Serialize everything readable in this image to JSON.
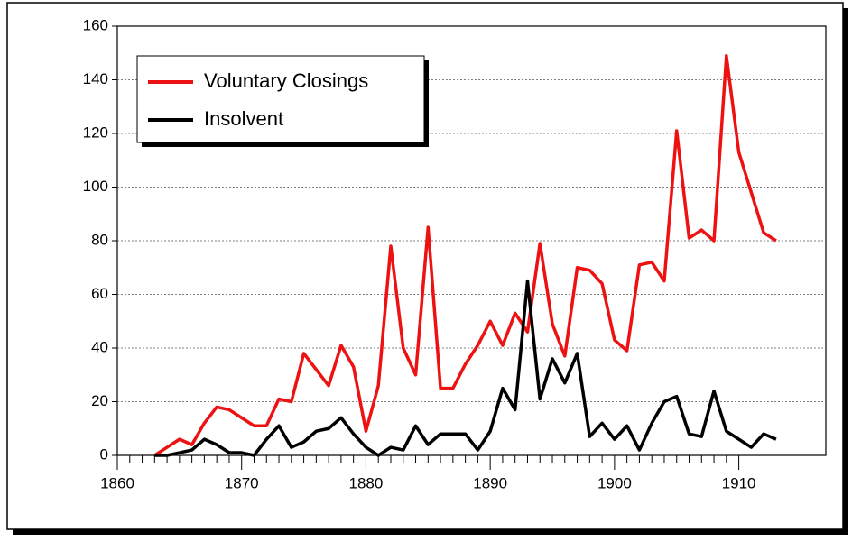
{
  "chart_data": {
    "type": "line",
    "x": [
      1863,
      1864,
      1865,
      1866,
      1867,
      1868,
      1869,
      1870,
      1871,
      1872,
      1873,
      1874,
      1875,
      1876,
      1877,
      1878,
      1879,
      1880,
      1881,
      1882,
      1883,
      1884,
      1885,
      1886,
      1887,
      1888,
      1889,
      1890,
      1891,
      1892,
      1893,
      1894,
      1895,
      1896,
      1897,
      1898,
      1899,
      1900,
      1901,
      1902,
      1903,
      1904,
      1905,
      1906,
      1907,
      1908,
      1909,
      1910,
      1911,
      1912,
      1913
    ],
    "series": [
      {
        "name": "Voluntary Closings",
        "color": "#ee1111",
        "values": [
          0,
          3,
          6,
          4,
          12,
          18,
          17,
          14,
          11,
          11,
          21,
          20,
          38,
          32,
          26,
          41,
          33,
          9,
          26,
          78,
          40,
          30,
          85,
          25,
          25,
          34,
          41,
          50,
          41,
          53,
          46,
          79,
          49,
          37,
          70,
          69,
          64,
          43,
          39,
          71,
          72,
          65,
          121,
          81,
          84,
          80,
          149,
          113,
          98,
          83,
          80
        ]
      },
      {
        "name": "Insolvent",
        "color": "#000000",
        "values": [
          0,
          0,
          1,
          2,
          6,
          4,
          1,
          1,
          0,
          6,
          11,
          3,
          5,
          9,
          10,
          14,
          8,
          3,
          0,
          3,
          2,
          11,
          4,
          8,
          8,
          8,
          2,
          9,
          25,
          17,
          65,
          21,
          36,
          27,
          38,
          7,
          12,
          6,
          11,
          2,
          12,
          20,
          22,
          8,
          7,
          24,
          9,
          6,
          3,
          8,
          6
        ]
      }
    ],
    "xlim": [
      1860,
      1917
    ],
    "xticks": [
      1860,
      1870,
      1880,
      1890,
      1900,
      1910
    ],
    "ylim": [
      0,
      160
    ],
    "yticks": [
      0,
      20,
      40,
      60,
      80,
      100,
      120,
      140,
      160
    ],
    "grid": true,
    "legend": "upper left"
  }
}
